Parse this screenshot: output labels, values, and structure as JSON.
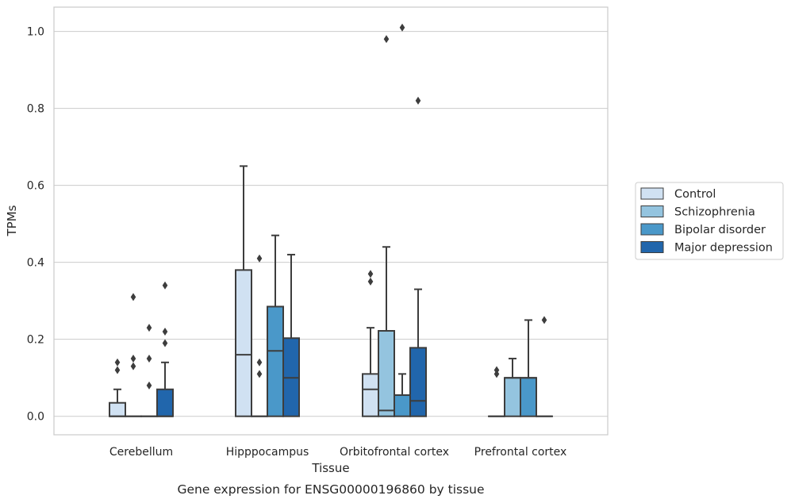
{
  "chart_data": {
    "type": "box",
    "title": "",
    "caption": "Gene expression for ENSG00000196860 by tissue",
    "xlabel": "Tissue",
    "ylabel": "TPMs",
    "categories": [
      "Cerebellum",
      "Hipppocampus",
      "Orbitofrontal cortex",
      "Prefrontal cortex"
    ],
    "ylim": [
      -0.048,
      1.063
    ],
    "yticks": [
      "0.0",
      "0.2",
      "0.4",
      "0.6",
      "0.8",
      "1.0"
    ],
    "grid": true,
    "legend_position": "right",
    "series": [
      {
        "name": "Control",
        "color": "#d0e1f2",
        "boxes": [
          {
            "q1": 0.0,
            "median": 0.0,
            "q3": 0.035,
            "whisker_low": 0.0,
            "whisker_high": 0.07,
            "outliers": [
              0.12,
              0.14
            ]
          },
          {
            "q1": 0.0,
            "median": 0.16,
            "q3": 0.38,
            "whisker_low": 0.0,
            "whisker_high": 0.65,
            "outliers": []
          },
          {
            "q1": 0.0,
            "median": 0.07,
            "q3": 0.11,
            "whisker_low": 0.0,
            "whisker_high": 0.23,
            "outliers": [
              0.35,
              0.37
            ]
          },
          {
            "q1": 0.0,
            "median": 0.0,
            "q3": 0.0,
            "whisker_low": 0.0,
            "whisker_high": 0.0,
            "outliers": [
              0.11,
              0.12
            ]
          }
        ]
      },
      {
        "name": "Schizophrenia",
        "color": "#94c4df",
        "boxes": [
          {
            "q1": 0.0,
            "median": 0.0,
            "q3": 0.0,
            "whisker_low": 0.0,
            "whisker_high": 0.0,
            "outliers": [
              0.13,
              0.15,
              0.31
            ]
          },
          {
            "q1": 0.0,
            "median": 0.0,
            "q3": 0.0,
            "whisker_low": 0.0,
            "whisker_high": 0.0,
            "outliers": [
              0.11,
              0.14,
              0.41
            ]
          },
          {
            "q1": 0.0,
            "median": 0.015,
            "q3": 0.222,
            "whisker_low": 0.0,
            "whisker_high": 0.44,
            "outliers": [
              0.98
            ]
          },
          {
            "q1": 0.0,
            "median": 0.1,
            "q3": 0.1,
            "whisker_low": 0.0,
            "whisker_high": 0.15,
            "outliers": []
          }
        ]
      },
      {
        "name": "Bipolar disorder",
        "color": "#4a98c9",
        "boxes": [
          {
            "q1": 0.0,
            "median": 0.0,
            "q3": 0.0,
            "whisker_low": 0.0,
            "whisker_high": 0.0,
            "outliers": [
              0.08,
              0.15,
              0.23
            ]
          },
          {
            "q1": 0.0,
            "median": 0.17,
            "q3": 0.285,
            "whisker_low": 0.0,
            "whisker_high": 0.47,
            "outliers": []
          },
          {
            "q1": 0.0,
            "median": 0.055,
            "q3": 0.055,
            "whisker_low": 0.0,
            "whisker_high": 0.11,
            "outliers": [
              1.01
            ]
          },
          {
            "q1": 0.0,
            "median": 0.1,
            "q3": 0.1,
            "whisker_low": 0.0,
            "whisker_high": 0.25,
            "outliers": []
          }
        ]
      },
      {
        "name": "Major depression",
        "color": "#2166ac",
        "boxes": [
          {
            "q1": 0.0,
            "median": 0.0,
            "q3": 0.07,
            "whisker_low": 0.0,
            "whisker_high": 0.14,
            "outliers": [
              0.19,
              0.22,
              0.34
            ]
          },
          {
            "q1": 0.0,
            "median": 0.1,
            "q3": 0.203,
            "whisker_low": 0.0,
            "whisker_high": 0.42,
            "outliers": []
          },
          {
            "q1": 0.0,
            "median": 0.04,
            "q3": 0.178,
            "whisker_low": 0.0,
            "whisker_high": 0.33,
            "outliers": [
              0.82
            ]
          },
          {
            "q1": 0.0,
            "median": 0.0,
            "q3": 0.0,
            "whisker_low": 0.0,
            "whisker_high": 0.0,
            "outliers": [
              0.25
            ]
          }
        ]
      }
    ]
  }
}
